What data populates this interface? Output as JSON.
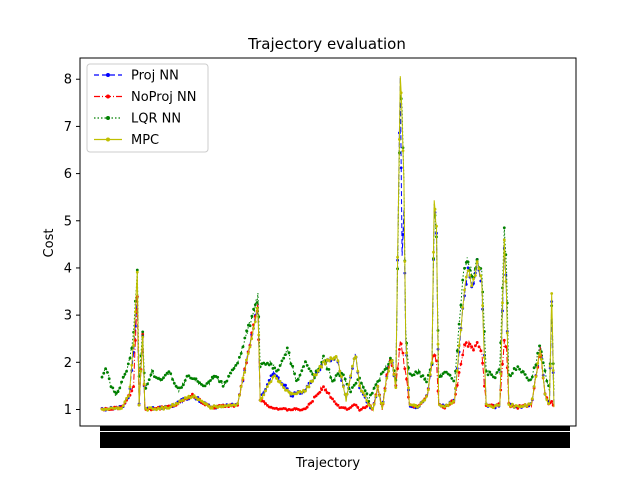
{
  "chart_data": {
    "type": "line",
    "title": "Trajectory evaluation",
    "xlabel": "Trajectory",
    "ylabel": "Cost",
    "xlim": [
      0,
      1000
    ],
    "ylim": [
      0.65,
      8.45
    ],
    "yticks": [
      1,
      2,
      3,
      4,
      5,
      6,
      7,
      8
    ],
    "grid": false,
    "legend_position": "top-left",
    "x_tick_note": "x-axis tick labels are densely overlapping and unreadable",
    "series": [
      {
        "name": "Proj NN",
        "color": "#0000ff",
        "style": "dashed",
        "marker": "dot",
        "anchors": [
          [
            0,
            1.0
          ],
          [
            20,
            1.02
          ],
          [
            45,
            1.05
          ],
          [
            60,
            1.3
          ],
          [
            70,
            2.2
          ],
          [
            78,
            3.4
          ],
          [
            82,
            1.1
          ],
          [
            90,
            2.6
          ],
          [
            95,
            1.0
          ],
          [
            150,
            1.05
          ],
          [
            200,
            1.3
          ],
          [
            240,
            1.05
          ],
          [
            300,
            1.1
          ],
          [
            345,
            3.2
          ],
          [
            350,
            1.2
          ],
          [
            380,
            1.8
          ],
          [
            420,
            1.3
          ],
          [
            450,
            1.4
          ],
          [
            490,
            2.0
          ],
          [
            520,
            2.1
          ],
          [
            540,
            1.2
          ],
          [
            560,
            2.2
          ],
          [
            570,
            1.5
          ],
          [
            590,
            1.1
          ],
          [
            600,
            1.0
          ],
          [
            610,
            1.5
          ],
          [
            620,
            1.0
          ],
          [
            630,
            1.7
          ],
          [
            640,
            2.1
          ],
          [
            650,
            1.5
          ],
          [
            660,
            8.1
          ],
          [
            664,
            4.3
          ],
          [
            668,
            5.3
          ],
          [
            672,
            2.5
          ],
          [
            680,
            1.1
          ],
          [
            700,
            1.05
          ],
          [
            720,
            1.3
          ],
          [
            730,
            2.0
          ],
          [
            735,
            5.3
          ],
          [
            740,
            4.8
          ],
          [
            745,
            1.1
          ],
          [
            760,
            1.05
          ],
          [
            780,
            1.2
          ],
          [
            800,
            3.3
          ],
          [
            810,
            4.0
          ],
          [
            820,
            3.6
          ],
          [
            830,
            4.1
          ],
          [
            840,
            3.7
          ],
          [
            850,
            1.1
          ],
          [
            870,
            1.05
          ],
          [
            880,
            1.1
          ],
          [
            890,
            4.5
          ],
          [
            895,
            3.4
          ],
          [
            900,
            1.1
          ],
          [
            920,
            1.05
          ],
          [
            950,
            1.1
          ],
          [
            970,
            2.3
          ],
          [
            980,
            1.3
          ],
          [
            990,
            1.1
          ],
          [
            995,
            3.3
          ],
          [
            1000,
            1.05
          ]
        ]
      },
      {
        "name": "NoProj NN",
        "color": "#ff0000",
        "style": "dashdot",
        "marker": "dot",
        "anchors": [
          [
            0,
            1.0
          ],
          [
            20,
            1.02
          ],
          [
            45,
            1.05
          ],
          [
            60,
            1.3
          ],
          [
            70,
            1.5
          ],
          [
            78,
            3.4
          ],
          [
            82,
            1.1
          ],
          [
            90,
            2.6
          ],
          [
            95,
            1.0
          ],
          [
            150,
            1.05
          ],
          [
            200,
            1.3
          ],
          [
            240,
            1.05
          ],
          [
            300,
            1.1
          ],
          [
            345,
            3.2
          ],
          [
            350,
            1.2
          ],
          [
            380,
            1.0
          ],
          [
            420,
            1.0
          ],
          [
            450,
            1.0
          ],
          [
            490,
            1.5
          ],
          [
            520,
            1.1
          ],
          [
            540,
            1.0
          ],
          [
            560,
            1.1
          ],
          [
            570,
            1.0
          ],
          [
            590,
            1.1
          ],
          [
            600,
            1.0
          ],
          [
            610,
            1.5
          ],
          [
            620,
            1.0
          ],
          [
            630,
            1.7
          ],
          [
            640,
            2.1
          ],
          [
            650,
            1.5
          ],
          [
            660,
            2.4
          ],
          [
            664,
            2.3
          ],
          [
            668,
            2.0
          ],
          [
            672,
            1.8
          ],
          [
            680,
            1.1
          ],
          [
            700,
            1.05
          ],
          [
            720,
            1.3
          ],
          [
            730,
            2.0
          ],
          [
            735,
            2.2
          ],
          [
            740,
            2.0
          ],
          [
            745,
            1.1
          ],
          [
            760,
            1.05
          ],
          [
            780,
            1.2
          ],
          [
            800,
            2.3
          ],
          [
            810,
            2.4
          ],
          [
            820,
            2.3
          ],
          [
            830,
            2.4
          ],
          [
            840,
            2.2
          ],
          [
            850,
            1.1
          ],
          [
            870,
            1.05
          ],
          [
            880,
            1.1
          ],
          [
            890,
            2.5
          ],
          [
            895,
            2.3
          ],
          [
            900,
            1.1
          ],
          [
            920,
            1.05
          ],
          [
            950,
            1.1
          ],
          [
            970,
            2.3
          ],
          [
            980,
            1.3
          ],
          [
            990,
            1.1
          ],
          [
            995,
            1.2
          ],
          [
            1000,
            1.05
          ]
        ]
      },
      {
        "name": "LQR NN",
        "color": "#008000",
        "style": "dotted",
        "marker": "dot",
        "anchors": [
          [
            0,
            1.7
          ],
          [
            10,
            1.9
          ],
          [
            20,
            1.5
          ],
          [
            30,
            1.3
          ],
          [
            45,
            1.6
          ],
          [
            60,
            2.0
          ],
          [
            70,
            2.6
          ],
          [
            78,
            3.9
          ],
          [
            82,
            1.7
          ],
          [
            90,
            2.6
          ],
          [
            95,
            1.4
          ],
          [
            110,
            1.8
          ],
          [
            130,
            1.6
          ],
          [
            150,
            1.8
          ],
          [
            170,
            1.4
          ],
          [
            190,
            1.7
          ],
          [
            210,
            1.6
          ],
          [
            230,
            1.5
          ],
          [
            250,
            1.7
          ],
          [
            270,
            1.5
          ],
          [
            300,
            2.0
          ],
          [
            320,
            2.6
          ],
          [
            345,
            3.4
          ],
          [
            350,
            1.9
          ],
          [
            370,
            2.0
          ],
          [
            390,
            1.8
          ],
          [
            410,
            2.3
          ],
          [
            430,
            1.6
          ],
          [
            450,
            2.0
          ],
          [
            470,
            1.7
          ],
          [
            490,
            2.1
          ],
          [
            510,
            1.6
          ],
          [
            530,
            1.8
          ],
          [
            550,
            1.4
          ],
          [
            570,
            1.7
          ],
          [
            590,
            1.2
          ],
          [
            610,
            1.6
          ],
          [
            630,
            1.9
          ],
          [
            640,
            2.1
          ],
          [
            650,
            1.6
          ],
          [
            660,
            7.7
          ],
          [
            664,
            7.3
          ],
          [
            668,
            5.8
          ],
          [
            672,
            2.6
          ],
          [
            680,
            1.7
          ],
          [
            700,
            1.8
          ],
          [
            720,
            1.6
          ],
          [
            730,
            2.0
          ],
          [
            735,
            5.3
          ],
          [
            740,
            4.6
          ],
          [
            745,
            1.7
          ],
          [
            760,
            1.8
          ],
          [
            780,
            1.6
          ],
          [
            800,
            3.9
          ],
          [
            810,
            4.2
          ],
          [
            820,
            3.8
          ],
          [
            830,
            4.2
          ],
          [
            840,
            3.9
          ],
          [
            850,
            1.8
          ],
          [
            870,
            1.7
          ],
          [
            880,
            1.9
          ],
          [
            890,
            4.8
          ],
          [
            895,
            4.0
          ],
          [
            900,
            1.7
          ],
          [
            920,
            1.9
          ],
          [
            950,
            1.6
          ],
          [
            970,
            2.4
          ],
          [
            980,
            1.8
          ],
          [
            990,
            1.4
          ],
          [
            995,
            3.2
          ],
          [
            1000,
            1.4
          ]
        ]
      },
      {
        "name": "MPC",
        "color": "#bfbf00",
        "style": "solid",
        "marker": "dot",
        "anchors": [
          [
            0,
            1.0
          ],
          [
            20,
            1.02
          ],
          [
            45,
            1.05
          ],
          [
            60,
            1.3
          ],
          [
            70,
            2.4
          ],
          [
            78,
            3.9
          ],
          [
            82,
            1.1
          ],
          [
            90,
            2.6
          ],
          [
            95,
            1.0
          ],
          [
            150,
            1.05
          ],
          [
            200,
            1.3
          ],
          [
            240,
            1.05
          ],
          [
            300,
            1.1
          ],
          [
            345,
            3.2
          ],
          [
            350,
            1.2
          ],
          [
            380,
            1.7
          ],
          [
            420,
            1.3
          ],
          [
            450,
            1.4
          ],
          [
            490,
            2.0
          ],
          [
            520,
            2.1
          ],
          [
            540,
            1.2
          ],
          [
            560,
            2.2
          ],
          [
            570,
            1.5
          ],
          [
            590,
            1.1
          ],
          [
            600,
            1.0
          ],
          [
            610,
            1.5
          ],
          [
            620,
            1.0
          ],
          [
            630,
            1.7
          ],
          [
            640,
            2.1
          ],
          [
            650,
            1.5
          ],
          [
            660,
            8.1
          ],
          [
            664,
            7.2
          ],
          [
            668,
            5.8
          ],
          [
            672,
            2.5
          ],
          [
            680,
            1.1
          ],
          [
            700,
            1.05
          ],
          [
            720,
            1.3
          ],
          [
            730,
            2.0
          ],
          [
            735,
            5.4
          ],
          [
            740,
            4.8
          ],
          [
            745,
            1.1
          ],
          [
            760,
            1.05
          ],
          [
            780,
            1.2
          ],
          [
            800,
            3.4
          ],
          [
            810,
            4.0
          ],
          [
            820,
            3.6
          ],
          [
            830,
            4.1
          ],
          [
            840,
            3.7
          ],
          [
            850,
            1.1
          ],
          [
            870,
            1.05
          ],
          [
            880,
            1.1
          ],
          [
            890,
            4.6
          ],
          [
            895,
            3.4
          ],
          [
            900,
            1.1
          ],
          [
            920,
            1.05
          ],
          [
            950,
            1.1
          ],
          [
            970,
            2.3
          ],
          [
            980,
            1.3
          ],
          [
            990,
            1.1
          ],
          [
            995,
            3.5
          ],
          [
            1000,
            1.05
          ]
        ]
      }
    ]
  }
}
